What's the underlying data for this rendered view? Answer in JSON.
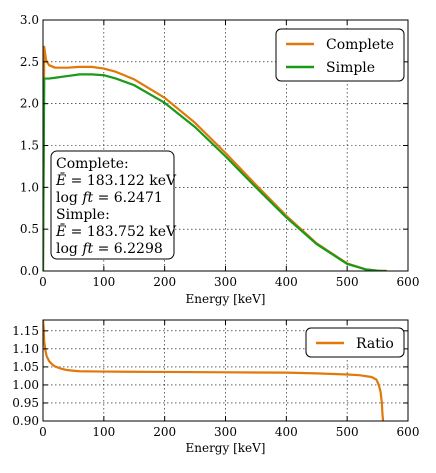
{
  "colors": {
    "complete": "#e0780a",
    "simple": "#1a9a1a",
    "ratio": "#e0780a"
  },
  "chart_data": [
    {
      "type": "line",
      "xlabel": "Energy [keV]",
      "ylabel": "",
      "xlim": [
        0,
        600
      ],
      "ylim": [
        0.0,
        3.0
      ],
      "xticks": [
        "0",
        "100",
        "200",
        "300",
        "400",
        "500",
        "600"
      ],
      "yticks": [
        "0.0",
        "0.5",
        "1.0",
        "1.5",
        "2.0",
        "2.5",
        "3.0"
      ],
      "grid": true,
      "legend_position": "top-right",
      "series": [
        {
          "name": "Complete",
          "x": [
            0,
            2,
            5,
            10,
            20,
            40,
            60,
            80,
            100,
            120,
            150,
            200,
            250,
            300,
            350,
            400,
            450,
            500,
            530,
            550,
            560,
            565
          ],
          "y": [
            0.0,
            2.68,
            2.52,
            2.46,
            2.43,
            2.43,
            2.44,
            2.44,
            2.42,
            2.38,
            2.29,
            2.07,
            1.77,
            1.41,
            1.03,
            0.66,
            0.33,
            0.09,
            0.02,
            0.003,
            0.0,
            0.0
          ]
        },
        {
          "name": "Simple",
          "x": [
            0,
            2,
            5,
            10,
            20,
            40,
            60,
            80,
            100,
            120,
            150,
            200,
            250,
            300,
            350,
            400,
            450,
            500,
            530,
            550,
            560,
            565
          ],
          "y": [
            0.0,
            2.3,
            2.3,
            2.3,
            2.31,
            2.33,
            2.35,
            2.35,
            2.34,
            2.3,
            2.22,
            2.01,
            1.72,
            1.37,
            1.0,
            0.64,
            0.32,
            0.085,
            0.02,
            0.003,
            0.0,
            0.0
          ]
        }
      ],
      "annotation": {
        "lines": [
          "Complete:",
          "Ē = 183.122 keV",
          "log ft = 6.2471",
          "Simple:",
          "Ē = 183.752 keV",
          "log ft = 6.2298"
        ]
      }
    },
    {
      "type": "line",
      "xlabel": "Energy [keV]",
      "ylabel": "",
      "xlim": [
        0,
        600
      ],
      "ylim": [
        0.9,
        1.18
      ],
      "xticks": [
        "0",
        "100",
        "200",
        "300",
        "400",
        "500",
        "600"
      ],
      "yticks": [
        "0.90",
        "0.95",
        "1.00",
        "1.05",
        "1.10",
        "1.15"
      ],
      "grid": true,
      "legend_position": "top-right",
      "series": [
        {
          "name": "Ratio",
          "x": [
            0,
            1,
            2,
            4,
            6,
            10,
            15,
            20,
            30,
            40,
            60,
            100,
            200,
            300,
            400,
            450,
            500,
            520,
            540,
            548,
            552,
            555,
            557,
            558,
            559
          ],
          "y": [
            1.18,
            1.16,
            1.12,
            1.095,
            1.08,
            1.066,
            1.057,
            1.051,
            1.045,
            1.041,
            1.038,
            1.037,
            1.036,
            1.035,
            1.034,
            1.032,
            1.029,
            1.027,
            1.022,
            1.015,
            1.0,
            0.98,
            0.95,
            0.92,
            0.9
          ]
        }
      ]
    }
  ]
}
